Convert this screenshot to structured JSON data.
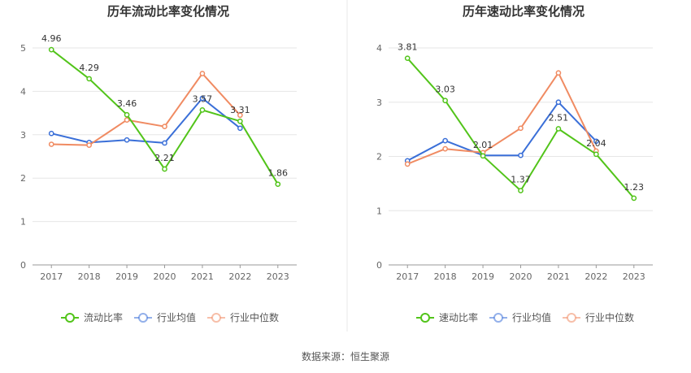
{
  "source_text": "数据来源：恒生聚源",
  "colors": {
    "main": "#52c41a",
    "avg": "#3a6fd8",
    "median": "#f08b62",
    "grid": "#e6e6e6",
    "axis": "#999999",
    "divider": "#e8e8e8"
  },
  "chart_data": [
    {
      "type": "line",
      "title": "历年流动比率变化情况",
      "categories": [
        "2017",
        "2018",
        "2019",
        "2020",
        "2021",
        "2022",
        "2023"
      ],
      "ylim": [
        0,
        5
      ],
      "yticks": [
        0,
        1,
        2,
        3,
        4,
        5
      ],
      "grid": true,
      "legend": "bottom",
      "series": [
        {
          "name": "流动比率",
          "role": "main",
          "values": [
            4.96,
            4.29,
            3.46,
            2.21,
            3.57,
            3.31,
            1.86
          ],
          "labels": [
            "4.96",
            "4.29",
            "3.46",
            "2.21",
            "3.57",
            "3.31",
            "1.86"
          ]
        },
        {
          "name": "行业均值",
          "role": "avg",
          "values": [
            3.03,
            2.82,
            2.88,
            2.81,
            3.84,
            3.15,
            null
          ]
        },
        {
          "name": "行业中位数",
          "role": "median",
          "values": [
            2.78,
            2.76,
            3.34,
            3.19,
            4.41,
            3.45,
            null
          ]
        }
      ]
    },
    {
      "type": "line",
      "title": "历年速动比率变化情况",
      "categories": [
        "2017",
        "2018",
        "2019",
        "2020",
        "2021",
        "2022",
        "2023"
      ],
      "ylim": [
        0,
        4
      ],
      "yticks": [
        0,
        1,
        2,
        3,
        4
      ],
      "grid": true,
      "legend": "bottom",
      "series": [
        {
          "name": "速动比率",
          "role": "main",
          "values": [
            3.81,
            3.03,
            2.01,
            1.37,
            2.51,
            2.04,
            1.23
          ],
          "labels": [
            "3.81",
            "3.03",
            "2.01",
            "1.37",
            "2.51",
            "2.04",
            "1.23"
          ]
        },
        {
          "name": "行业均值",
          "role": "avg",
          "values": [
            1.92,
            2.29,
            2.02,
            2.02,
            3.0,
            2.28,
            null
          ]
        },
        {
          "name": "行业中位数",
          "role": "median",
          "values": [
            1.86,
            2.14,
            2.07,
            2.52,
            3.54,
            2.1,
            null
          ]
        }
      ]
    }
  ]
}
